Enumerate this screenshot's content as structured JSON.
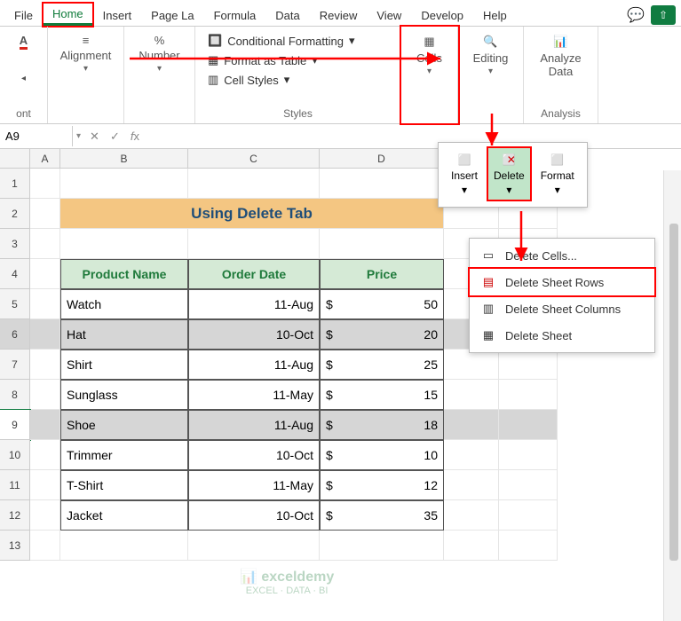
{
  "tabs": {
    "file": "File",
    "home": "Home",
    "insert": "Insert",
    "layout": "Page La",
    "formulas": "Formula",
    "data": "Data",
    "review": "Review",
    "view": "View",
    "developer": "Develop",
    "help": "Help"
  },
  "ribbon": {
    "font_label": "ont",
    "alignment": "Alignment",
    "number": "Number",
    "styles": {
      "cond": "Conditional Formatting",
      "table": "Format as Table",
      "cell": "Cell Styles",
      "label": "Styles"
    },
    "cells": "Cells",
    "editing": "Editing",
    "analyze": "Analyze Data",
    "analysis": "Analysis"
  },
  "namebox": "A9",
  "cols": {
    "A": 34,
    "B": 144,
    "C": 148,
    "D": 140,
    "E": 62,
    "F": 66
  },
  "title": "Using Delete Tab",
  "headers": {
    "b": "Product Name",
    "c": "Order Date",
    "d": "Price"
  },
  "rows": [
    {
      "b": "Watch",
      "c": "11-Aug",
      "d": "50"
    },
    {
      "b": "Hat",
      "c": "10-Oct",
      "d": "20"
    },
    {
      "b": "Shirt",
      "c": "11-Aug",
      "d": "25"
    },
    {
      "b": "Sunglass",
      "c": "11-May",
      "d": "15"
    },
    {
      "b": "Shoe",
      "c": "11-Aug",
      "d": "18"
    },
    {
      "b": "Trimmer",
      "c": "10-Oct",
      "d": "10"
    },
    {
      "b": "T-Shirt",
      "c": "11-May",
      "d": "12"
    },
    {
      "b": "Jacket",
      "c": "10-Oct",
      "d": "35"
    }
  ],
  "popup1": {
    "insert": "Insert",
    "delete": "Delete",
    "format": "Format"
  },
  "popup2": {
    "cells": "Delete Cells...",
    "rows": "Delete Sheet Rows",
    "cols": "Delete Sheet Columns",
    "sheet": "Delete Sheet"
  },
  "watermark": {
    "name": "exceldemy",
    "tag": "EXCEL · DATA · BI"
  },
  "colors": {
    "accent": "#107c41",
    "banner": "#f4c682",
    "thead": "#d5ead6",
    "highlight": "#ff0000"
  }
}
